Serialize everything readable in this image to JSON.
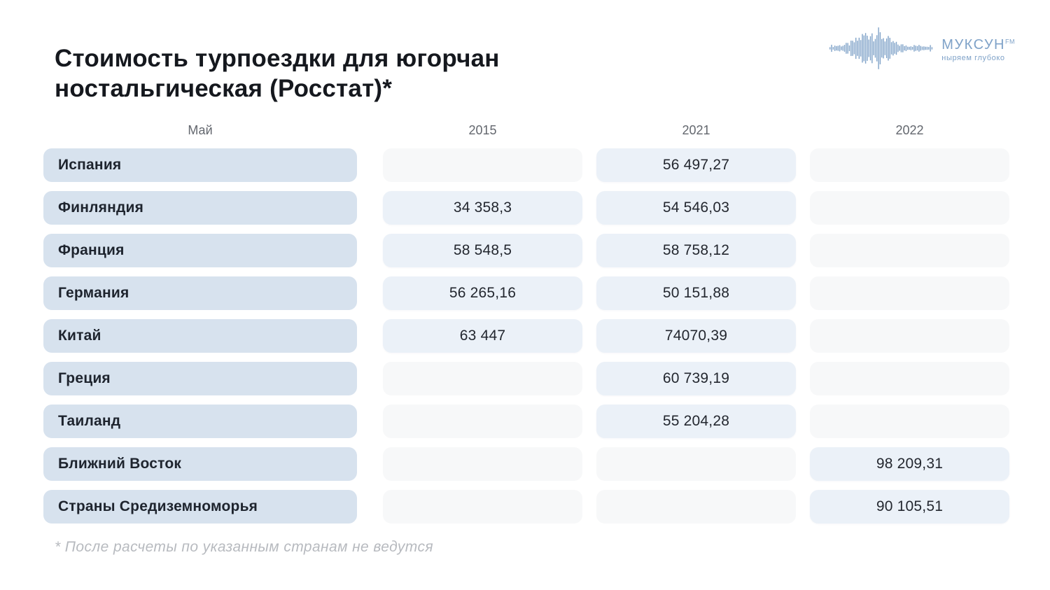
{
  "page": {
    "title": "Стоимость турпоездки для югорчан ностальгическая (Росстат)*",
    "footnote": "* После расчеты по указанным странам не ведутся"
  },
  "logo": {
    "name": "МУКСУН",
    "superscript": "FM",
    "tagline": "ныряем глубоко",
    "icon": "soundwave-icon"
  },
  "colors": {
    "label_bg": "#d7e2ee",
    "filled_bg": "#ebf1f8",
    "empty_bg": "#f7f8f9",
    "logo_blue": "#7fa2c8",
    "title_text": "#15181e",
    "header_gray": "#63676e",
    "footnote_gray": "#b7babf"
  },
  "table": {
    "headers": [
      "Май",
      "2015",
      "2021",
      "2022"
    ],
    "rows": [
      {
        "label": "Испания",
        "values": [
          "",
          "56 497,27",
          ""
        ]
      },
      {
        "label": "Финляндия",
        "values": [
          "34 358,3",
          "54 546,03",
          ""
        ]
      },
      {
        "label": "Франция",
        "values": [
          "58 548,5",
          "58 758,12",
          ""
        ]
      },
      {
        "label": "Германия",
        "values": [
          "56 265,16",
          "50 151,88",
          ""
        ]
      },
      {
        "label": "Китай",
        "values": [
          "63 447",
          "74070,39",
          ""
        ]
      },
      {
        "label": "Греция",
        "values": [
          "",
          "60 739,19",
          ""
        ]
      },
      {
        "label": "Таиланд",
        "values": [
          "",
          "55 204,28",
          ""
        ]
      },
      {
        "label": "Ближний Восток",
        "values": [
          "",
          "",
          "98 209,31"
        ]
      },
      {
        "label": "Страны Средиземноморья",
        "values": [
          "",
          "",
          "90 105,51"
        ]
      }
    ]
  },
  "chart_data": {
    "type": "table",
    "title": "Стоимость турпоездки для югорчан ностальгическая (Росстат)*",
    "categories": [
      "Испания",
      "Финляндия",
      "Франция",
      "Германия",
      "Китай",
      "Греция",
      "Таиланд",
      "Ближний Восток",
      "Страны Средиземноморья"
    ],
    "series": [
      {
        "name": "2015",
        "values": [
          null,
          34358.3,
          58548.5,
          56265.16,
          63447,
          null,
          null,
          null,
          null
        ]
      },
      {
        "name": "2021",
        "values": [
          56497.27,
          54546.03,
          58758.12,
          50151.88,
          74070.39,
          60739.19,
          55204.28,
          null,
          null
        ]
      },
      {
        "name": "2022",
        "values": [
          null,
          null,
          null,
          null,
          null,
          null,
          null,
          98209.31,
          90105.51
        ]
      }
    ],
    "row_header_label": "Май",
    "footnote": "* После расчеты по указанным странам не ведутся"
  }
}
